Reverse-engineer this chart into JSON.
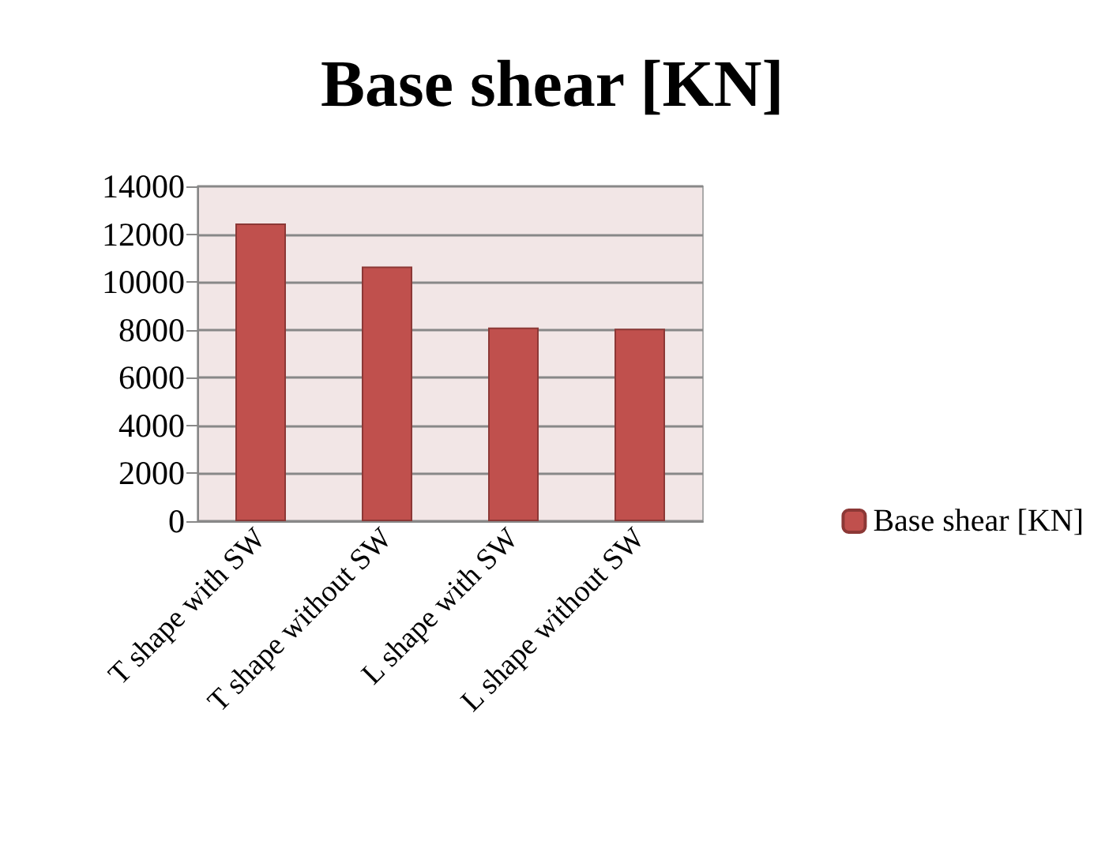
{
  "chart_data": {
    "type": "bar",
    "title": "Base shear [KN]",
    "categories": [
      "T shape with SW",
      "T shape without SW",
      "L shape with SW",
      "L shape without SW"
    ],
    "series": [
      {
        "name": "Base shear [KN]",
        "color": "#c0504d",
        "values": [
          12450,
          10650,
          8100,
          8050
        ]
      }
    ],
    "ylim": [
      0,
      14000
    ],
    "yticks": [
      0,
      2000,
      4000,
      6000,
      8000,
      10000,
      12000,
      14000
    ],
    "grid": "y",
    "legend": "right"
  }
}
